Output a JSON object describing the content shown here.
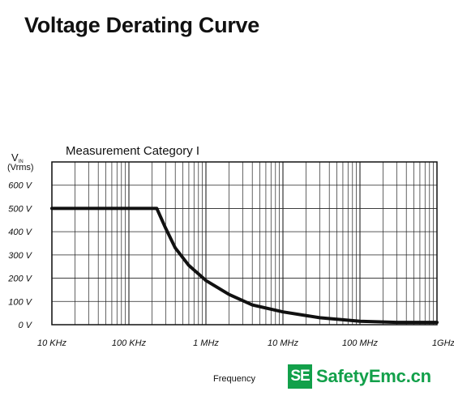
{
  "title": "Voltage Derating Curve",
  "chart_data": {
    "type": "line",
    "subtitle": "Measurement Category I",
    "ylabel_main": "V",
    "ylabel_sub": "IN",
    "ylabel_unit": "(Vrms)",
    "xlabel": "Frequency",
    "x_scale": "log",
    "xlim_hz": [
      10000,
      1000000000
    ],
    "ylim": [
      0,
      700
    ],
    "grid": true,
    "x_ticks": [
      {
        "value": 10000,
        "label": "10 KHz"
      },
      {
        "value": 100000,
        "label": "100 KHz"
      },
      {
        "value": 1000000,
        "label": "1 MHz"
      },
      {
        "value": 10000000,
        "label": "10 MHz"
      },
      {
        "value": 100000000,
        "label": "100 MHz"
      },
      {
        "value": 1000000000,
        "label": "1GHz"
      }
    ],
    "y_ticks": [
      {
        "value": 0,
        "label": "0 V"
      },
      {
        "value": 100,
        "label": "100 V"
      },
      {
        "value": 200,
        "label": "200 V"
      },
      {
        "value": 300,
        "label": "300 V"
      },
      {
        "value": 400,
        "label": "400 V"
      },
      {
        "value": 500,
        "label": "500 V"
      },
      {
        "value": 600,
        "label": "600 V"
      }
    ],
    "series": [
      {
        "x": [
          10000,
          100000,
          230000,
          300000,
          400000,
          600000,
          1000000,
          2000000,
          4000000,
          10000000,
          30000000,
          100000000,
          300000000,
          1000000000
        ],
        "y": [
          500,
          500,
          500,
          415,
          330,
          255,
          190,
          130,
          85,
          55,
          30,
          15,
          10,
          10
        ]
      }
    ]
  },
  "watermark": {
    "logo": "SE",
    "text": "SafetyEmc.cn",
    "color": "#12a04a"
  }
}
